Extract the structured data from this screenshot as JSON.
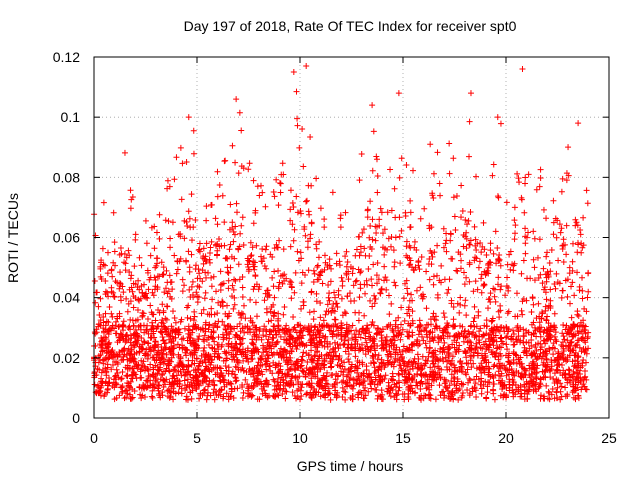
{
  "chart_data": {
    "type": "scatter",
    "title": "Day 197 of 2018, Rate Of TEC Index for receiver spt0",
    "xlabel": "GPS time / hours",
    "ylabel": "ROTI / TECUs",
    "xlim": [
      0,
      25
    ],
    "ylim": [
      0,
      0.12
    ],
    "x_ticks": [
      "0",
      "5",
      "10",
      "15",
      "20",
      "25"
    ],
    "y_ticks": [
      "0",
      "0.02",
      "0.04",
      "0.06",
      "0.08",
      "0.1",
      "0.12"
    ],
    "x_tick_values": [
      0,
      5,
      10,
      15,
      20,
      25
    ],
    "y_tick_values": [
      0,
      0.02,
      0.04,
      0.06,
      0.08,
      0.1,
      0.12
    ],
    "grid": true,
    "marker": "plus",
    "color": "#ff0000",
    "peaks": [
      {
        "x": 9.7,
        "y": 0.115
      },
      {
        "x": 10.3,
        "y": 0.117
      },
      {
        "x": 20.8,
        "y": 0.116
      },
      {
        "x": 18.3,
        "y": 0.108
      },
      {
        "x": 14.8,
        "y": 0.108
      },
      {
        "x": 6.9,
        "y": 0.106
      },
      {
        "x": 13.5,
        "y": 0.104
      },
      {
        "x": 4.6,
        "y": 0.1
      },
      {
        "x": 19.6,
        "y": 0.1
      },
      {
        "x": 23.5,
        "y": 0.098
      }
    ],
    "series": [
      {
        "x_range": [
          0,
          24
        ],
        "y_range": [
          0.004,
          0.117
        ],
        "x": [
          0.1,
          0.3,
          0.6,
          1.0,
          1.4,
          1.8,
          2.2,
          2.6,
          3.0,
          3.4,
          3.8,
          4.2,
          4.6,
          5.0,
          5.4,
          5.8,
          6.2,
          6.6,
          7.0,
          7.4,
          7.8,
          8.2,
          8.6,
          9.0,
          9.4,
          9.8,
          10.2,
          10.6,
          11.0,
          11.4,
          11.8,
          12.2,
          12.6,
          13.0,
          13.4,
          13.8,
          14.2,
          14.6,
          15.0,
          15.4,
          15.8,
          16.2,
          16.6,
          17.0,
          17.4,
          17.8,
          18.2,
          18.6,
          19.0,
          19.4,
          19.8,
          20.2,
          20.6,
          21.0,
          21.4,
          21.8,
          22.2,
          22.6,
          23.0,
          23.4,
          23.8
        ],
        "y_max_envelope": [
          0.069,
          0.078,
          0.073,
          0.075,
          0.09,
          0.083,
          0.068,
          0.072,
          0.07,
          0.074,
          0.085,
          0.096,
          0.1,
          0.094,
          0.082,
          0.085,
          0.086,
          0.09,
          0.106,
          0.09,
          0.082,
          0.084,
          0.079,
          0.086,
          0.09,
          0.115,
          0.117,
          0.094,
          0.084,
          0.078,
          0.072,
          0.081,
          0.075,
          0.088,
          0.104,
          0.097,
          0.083,
          0.108,
          0.09,
          0.082,
          0.087,
          0.093,
          0.098,
          0.085,
          0.098,
          0.095,
          0.108,
          0.088,
          0.082,
          0.085,
          0.1,
          0.083,
          0.116,
          0.088,
          0.086,
          0.087,
          0.083,
          0.09,
          0.093,
          0.098,
          0.082
        ]
      }
    ]
  }
}
